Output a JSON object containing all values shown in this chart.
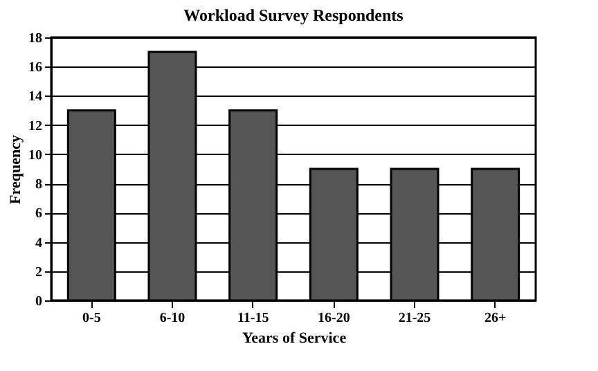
{
  "chart_data": {
    "type": "bar",
    "title": "Workload Survey Respondents",
    "xlabel": "Years of Service",
    "ylabel": "Frequency",
    "categories": [
      "0-5",
      "6-10",
      "11-15",
      "16-20",
      "21-25",
      "26+"
    ],
    "values": [
      13,
      17,
      13,
      9,
      9,
      9
    ],
    "color": "#555555",
    "ylim": [
      0,
      18
    ],
    "yticks": [
      0,
      2,
      4,
      6,
      8,
      10,
      12,
      14,
      16,
      18
    ],
    "grid": "y"
  }
}
